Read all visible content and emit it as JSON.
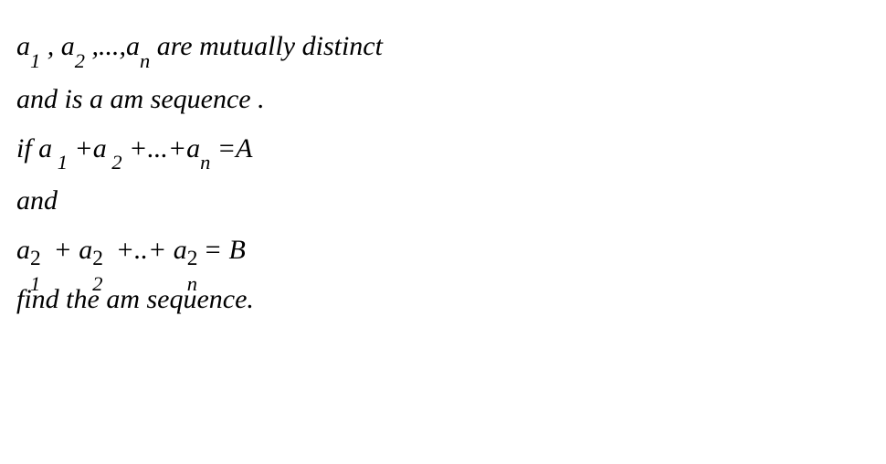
{
  "lines": {
    "l1_a": " a",
    "l1_s1": "1",
    "l1_b": " , a",
    "l1_s2": "2",
    "l1_c": " ,...,a",
    "l1_sn": "n",
    "l1_d": " are  mutually distinct",
    "l2": " and is a    am  sequence .",
    "l3_a": "  if a",
    "l3_b": " +a",
    "l3_c": " +...+a",
    "l3_d": " =A",
    "l4": "  and",
    "l5_a": "  a",
    "l5_b": " + a",
    "l5_c": " +..+ a",
    "l5_d": "= B",
    "l6": "   find  the  am  sequence."
  },
  "sub": {
    "1": "1",
    "2": "2",
    "n": "n"
  },
  "sup": {
    "2": "2"
  },
  "style": {
    "background": "#ffffff",
    "color": "#000000",
    "fontsize": 30
  }
}
